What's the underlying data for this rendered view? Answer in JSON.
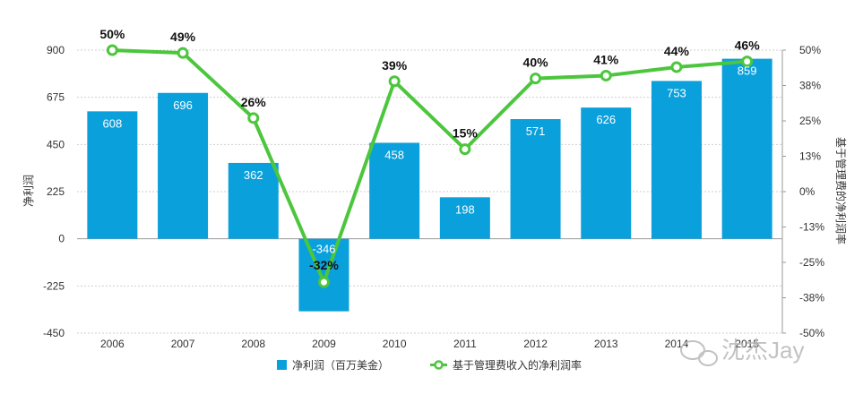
{
  "chart_data": {
    "type": "bar+line",
    "categories": [
      "2006",
      "2007",
      "2008",
      "2009",
      "2010",
      "2011",
      "2012",
      "2013",
      "2014",
      "2015"
    ],
    "series": [
      {
        "name": "净利润（百万美金）",
        "type": "bar",
        "axis": "left",
        "color": "#0aa0dc",
        "values": [
          608,
          696,
          362,
          -346,
          458,
          198,
          571,
          626,
          753,
          859
        ],
        "labels": [
          "608",
          "696",
          "362",
          "-346",
          "458",
          "198",
          "571",
          "626",
          "753",
          "859"
        ]
      },
      {
        "name": "基于管理费收入的净利润率",
        "type": "line",
        "axis": "right",
        "color": "#4cc63d",
        "values": [
          50,
          49,
          26,
          -32,
          39,
          15,
          40,
          41,
          44,
          46
        ],
        "labels": [
          "50%",
          "49%",
          "26%",
          "-32%",
          "39%",
          "15%",
          "40%",
          "41%",
          "44%",
          "46%"
        ]
      }
    ],
    "y_left": {
      "label": "净利润",
      "ylim": [
        -450,
        900
      ],
      "ticks": [
        "900",
        "675",
        "450",
        "225",
        "0",
        "-225",
        "-450"
      ]
    },
    "y_right": {
      "label": "基于管理费的净利润率",
      "ylim": [
        -50,
        50
      ],
      "ticks": [
        "50%",
        "38%",
        "25%",
        "13%",
        "0%",
        "-13%",
        "-25%",
        "-38%",
        "-50%"
      ]
    },
    "x_tick_labels": [
      "2006",
      "2007",
      "2008",
      "2009",
      "2010",
      "2011",
      "2012",
      "2013",
      "2014",
      "2015"
    ],
    "legend": {
      "position": "bottom-center"
    },
    "grid": true
  },
  "watermark": {
    "text": "沈杰Jay",
    "icon": "wechat-icon"
  }
}
